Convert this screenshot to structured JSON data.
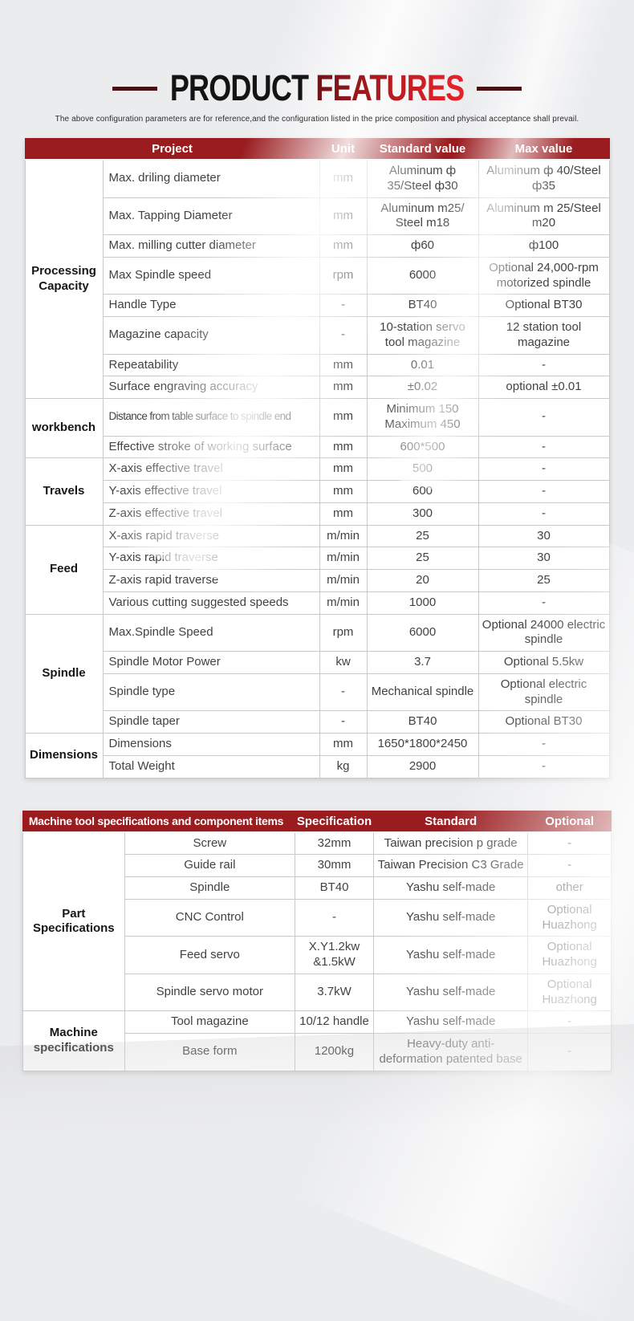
{
  "page": {
    "title_black": "PRODUCT",
    "title_red": "FEATURES",
    "subtitle": "The above configuration parameters are for reference,and the configuration listed in the price composition and physical acceptance shall prevail."
  },
  "colors": {
    "header_bg": "#9a1c1f",
    "accent_red": "#e42329",
    "dash_maroon": "#481114",
    "page_bg": "#ebecee"
  },
  "spec_table": {
    "headers": [
      "Project",
      "Unit",
      "Standard value",
      "Max value"
    ],
    "groups": [
      {
        "category": "Processing Capacity",
        "rows": [
          {
            "project": "Max. driling diameter",
            "unit": "mm",
            "standard": "Aluminum ф 35/Steel ф30",
            "max": "Aluminum ф 40/Steel ф35"
          },
          {
            "project": "Max. Tapping Diameter",
            "unit": "mm",
            "standard": "Aluminum m25/ Steel m18",
            "max": "Aluminum m 25/Steel m20"
          },
          {
            "project": "Max. milling cutter diameter",
            "unit": "mm",
            "standard": "ф60",
            "max": "ф100"
          },
          {
            "project": "Max Spindle speed",
            "unit": "rpm",
            "standard": "6000",
            "max": "Optional 24,000-rpm motorized spindle"
          },
          {
            "project": "Handle Type",
            "unit": "-",
            "standard": "BT40",
            "max": "Optional BT30"
          },
          {
            "project": "Magazine capacity",
            "unit": "-",
            "standard": "10-station servo tool magazine",
            "max": "12 station tool magazine"
          },
          {
            "project": "Repeatability",
            "unit": "mm",
            "standard": "0.01",
            "max": "-"
          },
          {
            "project": "Surface engraving accuracy",
            "unit": "mm",
            "standard": "±0.02",
            "max": "optional ±0.01"
          }
        ]
      },
      {
        "category": "workbench",
        "rows": [
          {
            "project": "Distance from table surface to spindle end",
            "unit": "mm",
            "standard": "Minimum 150 Maximum 450",
            "max": "-"
          },
          {
            "project": "Effective stroke of working surface",
            "unit": "mm",
            "standard": "600*500",
            "max": "-"
          }
        ]
      },
      {
        "category": "Travels",
        "rows": [
          {
            "project": "X-axis effective travel",
            "unit": "mm",
            "standard": "500",
            "max": "-"
          },
          {
            "project": "Y-axis effective travel",
            "unit": "mm",
            "standard": "600",
            "max": "-"
          },
          {
            "project": "Z-axis effective travel",
            "unit": "mm",
            "standard": "300",
            "max": "-"
          }
        ]
      },
      {
        "category": "Feed",
        "rows": [
          {
            "project": "X-axis rapid traverse",
            "unit": "m/min",
            "standard": "25",
            "max": "30"
          },
          {
            "project": "Y-axis rapid traverse",
            "unit": "m/min",
            "standard": "25",
            "max": "30"
          },
          {
            "project": "Z-axis rapid traverse",
            "unit": "m/min",
            "standard": "20",
            "max": "25"
          },
          {
            "project": "Various cutting suggested speeds",
            "unit": "m/min",
            "standard": "1000",
            "max": "-"
          }
        ]
      },
      {
        "category": "Spindle",
        "rows": [
          {
            "project": "Max.Spindle Speed",
            "unit": "rpm",
            "standard": "6000",
            "max": "Optional 24000 electric spindle"
          },
          {
            "project": "Spindle Motor Power",
            "unit": "kw",
            "standard": "3.7",
            "max": "Optional 5.5kw"
          },
          {
            "project": "Spindle type",
            "unit": "-",
            "standard": "Mechanical spindle",
            "max": "Optional electric spindle"
          },
          {
            "project": "Spindle taper",
            "unit": "-",
            "standard": "BT40",
            "max": "Optional BT30"
          }
        ]
      },
      {
        "category": "Dimensions",
        "rows": [
          {
            "project": "Dimensions",
            "unit": "mm",
            "standard": "1650*1800*2450",
            "max": "-"
          },
          {
            "project": "Total Weight",
            "unit": "kg",
            "standard": "2900",
            "max": "-"
          }
        ]
      }
    ]
  },
  "component_table": {
    "headers": [
      "Machine tool specifications and component items",
      "Specification",
      "Standard",
      "Optional"
    ],
    "groups": [
      {
        "category": "Part Specifications",
        "rows": [
          {
            "item": "Screw",
            "spec": "32mm",
            "standard": "Taiwan precision p grade",
            "optional": "-"
          },
          {
            "item": "Guide rail",
            "spec": "30mm",
            "standard": "Taiwan Precision C3 Grade",
            "optional": "-"
          },
          {
            "item": "Spindle",
            "spec": "BT40",
            "standard": "Yashu self-made",
            "optional": "other"
          },
          {
            "item": "CNC Control",
            "spec": "-",
            "standard": "Yashu self-made",
            "optional": "Optional Huazhong"
          },
          {
            "item": "Feed servo",
            "spec": "X.Y1.2kw &1.5kW",
            "standard": "Yashu self-made",
            "optional": "Optional Huazhong"
          },
          {
            "item": "Spindle servo motor",
            "spec": "3.7kW",
            "standard": "Yashu self-made",
            "optional": "Optional Huazhong"
          }
        ]
      },
      {
        "category": "Machine specifications",
        "rows": [
          {
            "item": "Tool magazine",
            "spec": "10/12 handle",
            "standard": "Yashu self-made",
            "optional": "-"
          },
          {
            "item": "Base form",
            "spec": "1200kg",
            "standard": "Heavy-duty anti-deformation patented base",
            "optional": "-"
          }
        ]
      }
    ]
  }
}
